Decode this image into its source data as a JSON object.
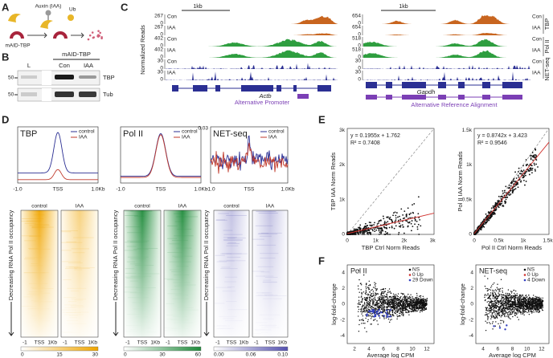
{
  "panels": {
    "a": {
      "label": "A",
      "inducer": "Auxin (IAA)",
      "tag": "Ub",
      "protein": "mAID-TBP"
    },
    "b": {
      "label": "B",
      "header": "mAID-TBP",
      "lanes": [
        "L",
        "Con",
        "IAA"
      ],
      "markers": [
        "50",
        "50"
      ],
      "proteins": [
        "TBP",
        "Tub"
      ]
    },
    "c": {
      "label": "C",
      "y_label": "Normalized Reads",
      "groups": [
        "TBP",
        "Pol II",
        "NET-seq"
      ],
      "loci": [
        {
          "scale": "1kb",
          "tracks": [
            {
              "max": "267",
              "min": "0",
              "condition": "Con"
            },
            {
              "max": "267",
              "min": "0",
              "condition": "IAA"
            },
            {
              "max": "402",
              "min": "0",
              "condition": "Con"
            },
            {
              "max": "402",
              "min": "0",
              "condition": "IAA"
            },
            {
              "max": "30",
              "min": "0",
              "condition": "Con"
            },
            {
              "max": "30",
              "min": "0",
              "condition": "IAA"
            }
          ],
          "gene": "Actb",
          "note": "Alternative Promoter"
        },
        {
          "scale": "1kb",
          "tracks": [
            {
              "max": "654",
              "min": "0",
              "condition": "Con"
            },
            {
              "max": "654",
              "min": "0",
              "condition": "IAA"
            },
            {
              "max": "518",
              "min": "0",
              "condition": "Con"
            },
            {
              "max": "518",
              "min": "0",
              "condition": "IAA"
            },
            {
              "max": "30",
              "min": "0",
              "condition": "Con"
            },
            {
              "max": "30",
              "min": "0",
              "condition": "IAA"
            }
          ],
          "gene": "Gapdh",
          "note": "Alternative Reference Alignment"
        }
      ]
    },
    "d": {
      "label": "D",
      "profiles": [
        {
          "title": "TBP",
          "legend": [
            "control",
            "IAA"
          ],
          "xticks": [
            "-1.0",
            "TSS",
            "1.0Kb"
          ]
        },
        {
          "title": "Pol II",
          "legend": [
            "control",
            "IAA"
          ],
          "xticks": [
            "-1.0",
            "TSS",
            "1.0Kb"
          ]
        },
        {
          "title": "NET-seq",
          "legend": [
            "control",
            "IAA"
          ],
          "xticks": [
            "-1.0",
            "TSS",
            "1.0Kb"
          ],
          "ytick": "0.03"
        }
      ],
      "heatmaps": [
        {
          "columns": [
            "control",
            "IAA"
          ],
          "y_label": "Decreasing RNA Pol II occupancy",
          "xticks": [
            "-1",
            "TSS",
            "1Kb"
          ],
          "colorbar": [
            "0",
            "15",
            "30"
          ]
        },
        {
          "columns": [
            "control",
            "IAA"
          ],
          "y_label": "Decreasing RNA Pol II occupancy",
          "xticks": [
            "-1",
            "TSS",
            "1Kb"
          ],
          "colorbar": [
            "0",
            "30",
            "60"
          ]
        },
        {
          "columns": [
            "control",
            "IAA"
          ],
          "y_label": "Decreasing RNA Pol II occupancy",
          "xticks": [
            "-1",
            "TSS",
            "1Kb"
          ],
          "colorbar": [
            "0.00",
            "0.06",
            "0.10"
          ]
        }
      ]
    },
    "e": {
      "label": "E",
      "plots": [
        {
          "equation": "y = 0.1955x + 1.762",
          "r2": "R² = 0.7408",
          "y_label": "TBP IAA Norm Reads",
          "x_label": "TBP Ctrl Norm Reads",
          "ticks": [
            "0",
            "1k",
            "2k",
            "3k"
          ]
        },
        {
          "equation": "y = 0.8742x + 3.423",
          "r2": "R² = 0.9546",
          "y_label": "Pol II IAA Norm Reads",
          "x_label": "Pol II Ctrl Norm Reads",
          "ticks": [
            "0",
            "0.5k",
            "1k",
            "1.5k"
          ]
        }
      ]
    },
    "f": {
      "label": "F",
      "plots": [
        {
          "title": "Pol II",
          "legend": [
            "NS",
            "0 Up",
            "29 Down"
          ],
          "y_label": "log-fold-change",
          "x_label": "Average log CPM",
          "xticks": [
            "2",
            "4",
            "6",
            "8",
            "10",
            "12"
          ],
          "yticks": [
            "4",
            "2",
            "0",
            "-2",
            "-4"
          ]
        },
        {
          "title": "NET-seq",
          "legend": [
            "NS",
            "0 Up",
            "4 Down"
          ],
          "y_label": "log-fold-change",
          "x_label": "Average log CPM",
          "xticks": [
            "4",
            "6",
            "8",
            "10",
            "12"
          ],
          "yticks": [
            "4",
            "2",
            "0",
            "-2",
            "-4"
          ]
        }
      ]
    }
  }
}
